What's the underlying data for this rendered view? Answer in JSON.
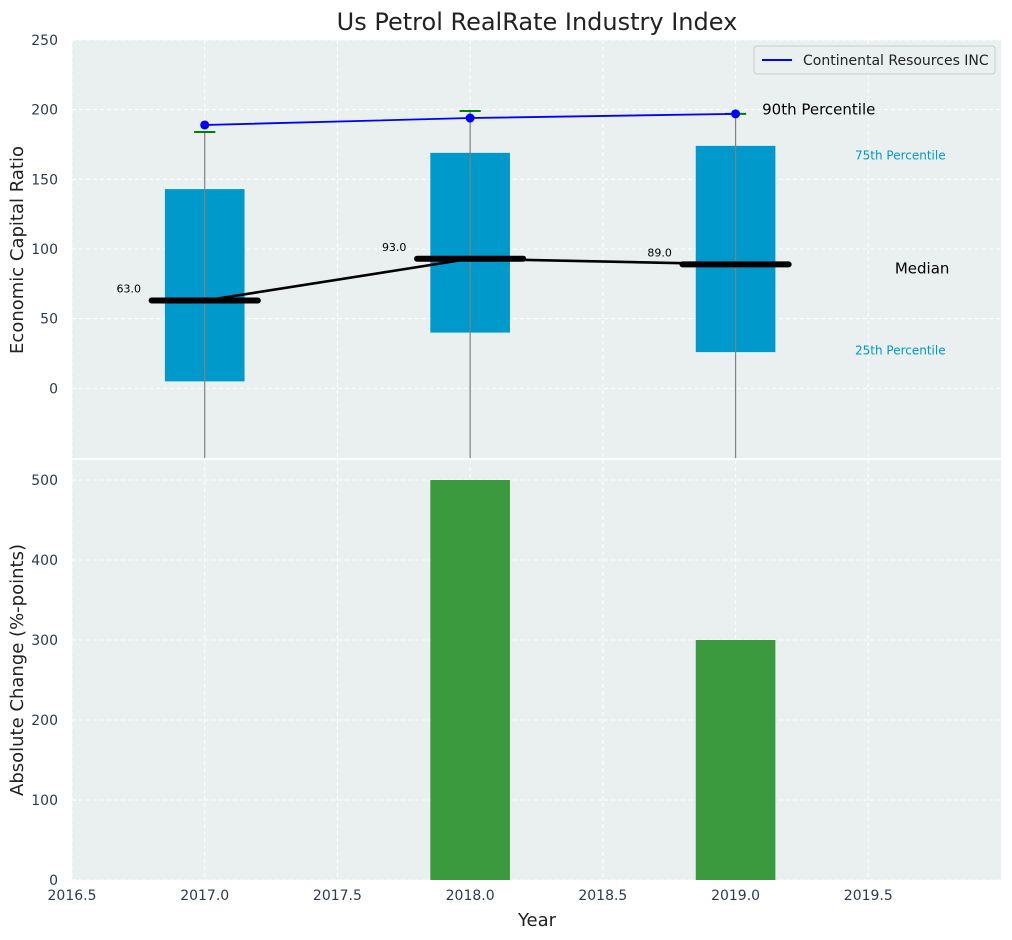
{
  "chart_data": [
    {
      "type": "box",
      "title": "Us Petrol RealRate Industry Index",
      "xlabel": "",
      "ylabel": "Economic Capital Ratio",
      "xlim": [
        2016.5,
        2020.0
      ],
      "ylim": [
        -50,
        250
      ],
      "yticks": [
        0,
        50,
        100,
        150,
        200,
        250
      ],
      "ytick_labels": [
        "0",
        "50",
        "100",
        "150",
        "200",
        "250"
      ],
      "grid": true,
      "boxes": [
        {
          "x": 2017.0,
          "q1": 5,
          "median": 63,
          "q3": 143,
          "p90": 184,
          "whisker_low": -50
        },
        {
          "x": 2018.0,
          "q1": 40,
          "median": 93,
          "q3": 169,
          "p90": 199,
          "whisker_low": -50
        },
        {
          "x": 2019.0,
          "q1": 26,
          "median": 89,
          "q3": 174,
          "p90": 197,
          "whisker_low": -50
        }
      ],
      "median_labels": [
        "63.0",
        "93.0",
        "89.0"
      ],
      "series": [
        {
          "name": "Continental Resources INC",
          "x": [
            2017.0,
            2018.0,
            2019.0
          ],
          "values": [
            189,
            194,
            197
          ],
          "color": "#0000ff"
        },
        {
          "name": "Median",
          "x": [
            2017.0,
            2018.0,
            2019.0
          ],
          "values": [
            63,
            93,
            89
          ],
          "color": "#000000"
        }
      ],
      "annotations": [
        {
          "text": "90th Percentile",
          "x": 2019.1,
          "y": 200,
          "color": "#000000"
        },
        {
          "text": "75th Percentile",
          "x": 2019.45,
          "y": 168,
          "color": "#0099cc"
        },
        {
          "text": "Median",
          "x": 2019.6,
          "y": 86,
          "color": "#000000"
        },
        {
          "text": "25th Percentile",
          "x": 2019.45,
          "y": 28,
          "color": "#0099cc"
        }
      ],
      "legend": {
        "entries": [
          "Continental Resources INC"
        ],
        "position": "top-right"
      },
      "colors": {
        "box": "#0099cc",
        "p90_tick": "#008000",
        "whisker": "#808080",
        "background": "#eaeff0",
        "grid": "#ffffff"
      }
    },
    {
      "type": "bar",
      "title": "",
      "xlabel": "Year",
      "ylabel": "Absolute Change (%-points)",
      "xlim": [
        2016.5,
        2020.0
      ],
      "ylim": [
        0,
        525
      ],
      "xticks": [
        2016.5,
        2017.0,
        2017.5,
        2018.0,
        2018.5,
        2019.0,
        2019.5
      ],
      "xtick_labels": [
        "2016.5",
        "2017.0",
        "2017.5",
        "2018.0",
        "2018.5",
        "2019.0",
        "2019.5"
      ],
      "yticks": [
        0,
        100,
        200,
        300,
        400,
        500
      ],
      "ytick_labels": [
        "0",
        "100",
        "200",
        "300",
        "400",
        "500"
      ],
      "x": [
        2018.0,
        2019.0
      ],
      "values": [
        500,
        300
      ],
      "bar_width": 0.3,
      "grid": true,
      "colors": {
        "bar": "#3a9a3d",
        "background": "#eaeff0",
        "grid": "#ffffff"
      }
    }
  ]
}
